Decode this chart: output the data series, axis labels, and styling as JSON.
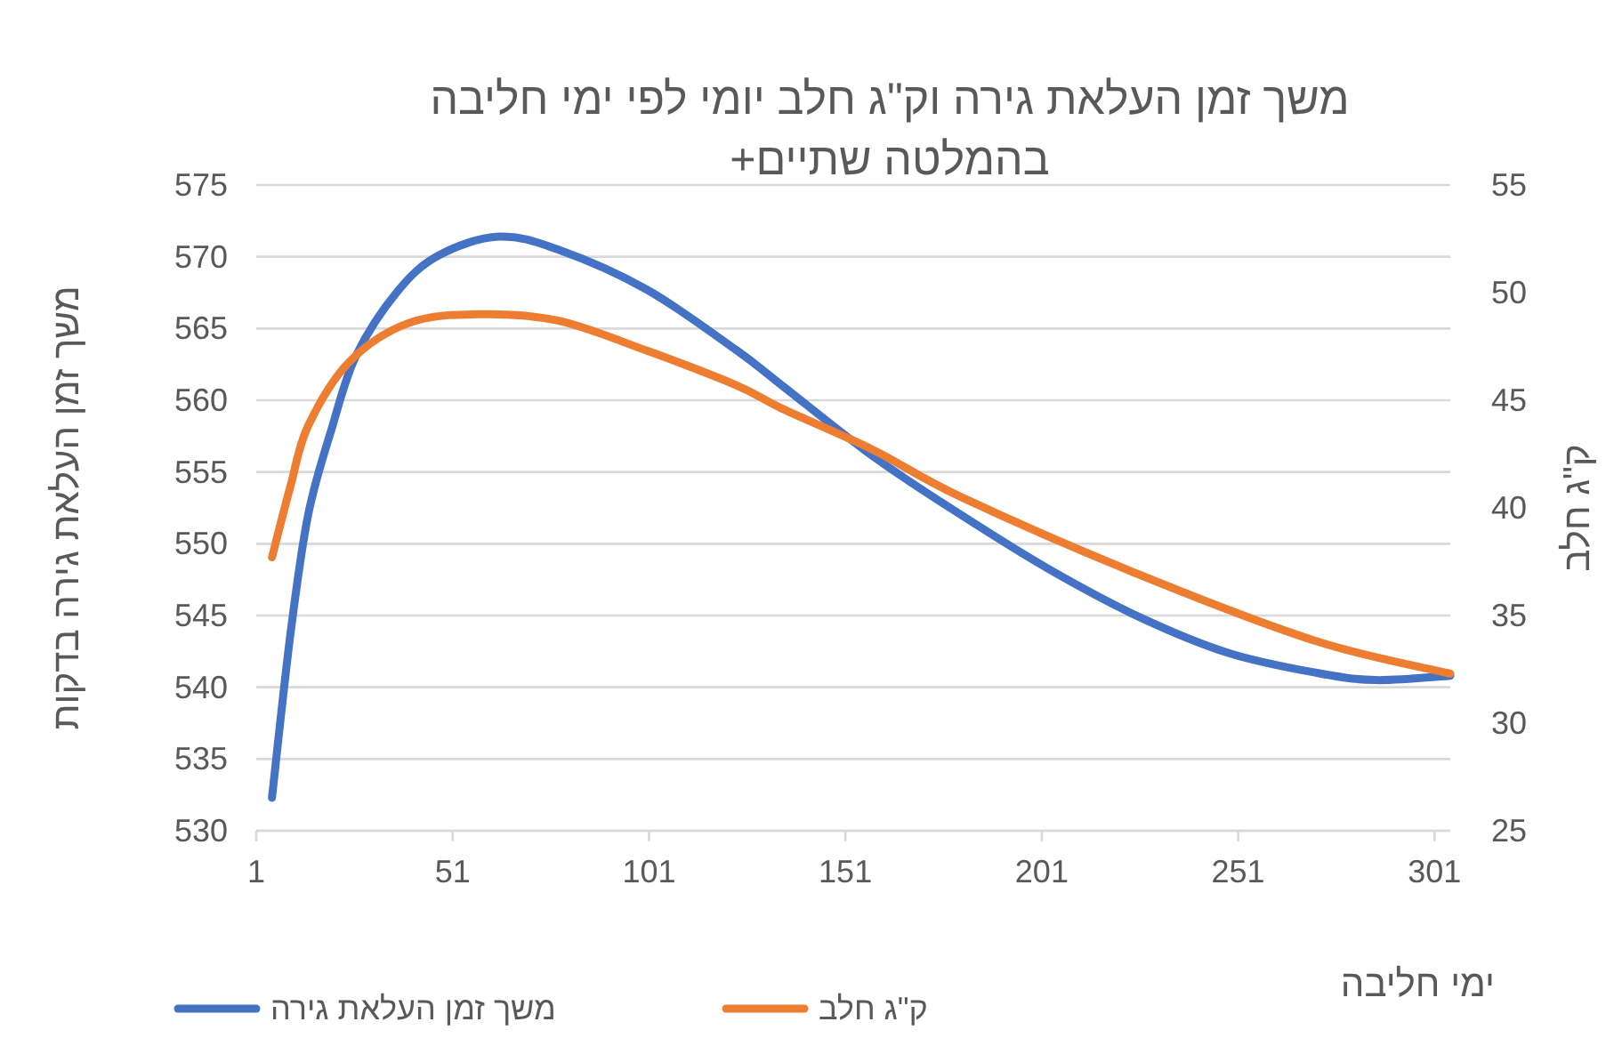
{
  "chart_data": {
    "type": "line",
    "title": "משך זמן העלאת גירה וק\"ג חלב יומי לפי ימי חליבה בהמלטה שתיים+",
    "xlabel": "ימי חליבה",
    "ylabel": "משך זמן העלאת גירה בדקות",
    "y2label": "ק\"ג חלב",
    "xlim": [
      1,
      305
    ],
    "xticks": [
      1,
      51,
      101,
      151,
      201,
      251,
      301
    ],
    "ylim": [
      530,
      575
    ],
    "yticks": [
      530,
      535,
      540,
      545,
      550,
      555,
      560,
      565,
      570,
      575
    ],
    "y2lim": [
      25,
      55
    ],
    "y2ticks": [
      25,
      30,
      35,
      40,
      45,
      50,
      55
    ],
    "grid": "y",
    "legend": "bottom",
    "marker": "none",
    "line_style": "solid",
    "series": [
      {
        "name": "משך זמן העלאת גירה",
        "color": "#4472c4",
        "x": [
          5,
          9.7,
          14.2,
          20.3,
          26.4,
          37,
          47.5,
          62.7,
          77.8,
          100.5,
          123.2,
          135,
          158,
          180.5,
          203,
          225.8,
          248.4,
          271,
          286,
          305
        ],
        "values": [
          532.3,
          543.7,
          552.0,
          558.1,
          563.1,
          567.6,
          570.1,
          571.4,
          570.5,
          567.7,
          563.5,
          561.0,
          556.1,
          552.0,
          548.2,
          544.9,
          542.4,
          541.0,
          540.5,
          540.8
        ]
      },
      {
        "name": "ק\"ג חלב",
        "color": "#ed7d31",
        "axis": "y2",
        "x": [
          5,
          9.7,
          14.2,
          24.8,
          40,
          58,
          77.8,
          100.5,
          123.2,
          135,
          158,
          180.5,
          225.8,
          271,
          305
        ],
        "values": [
          37.7,
          41.0,
          43.8,
          46.8,
          48.6,
          49.0,
          48.7,
          47.3,
          45.7,
          44.6,
          42.7,
          40.5,
          36.9,
          33.8,
          32.3
        ]
      }
    ]
  }
}
